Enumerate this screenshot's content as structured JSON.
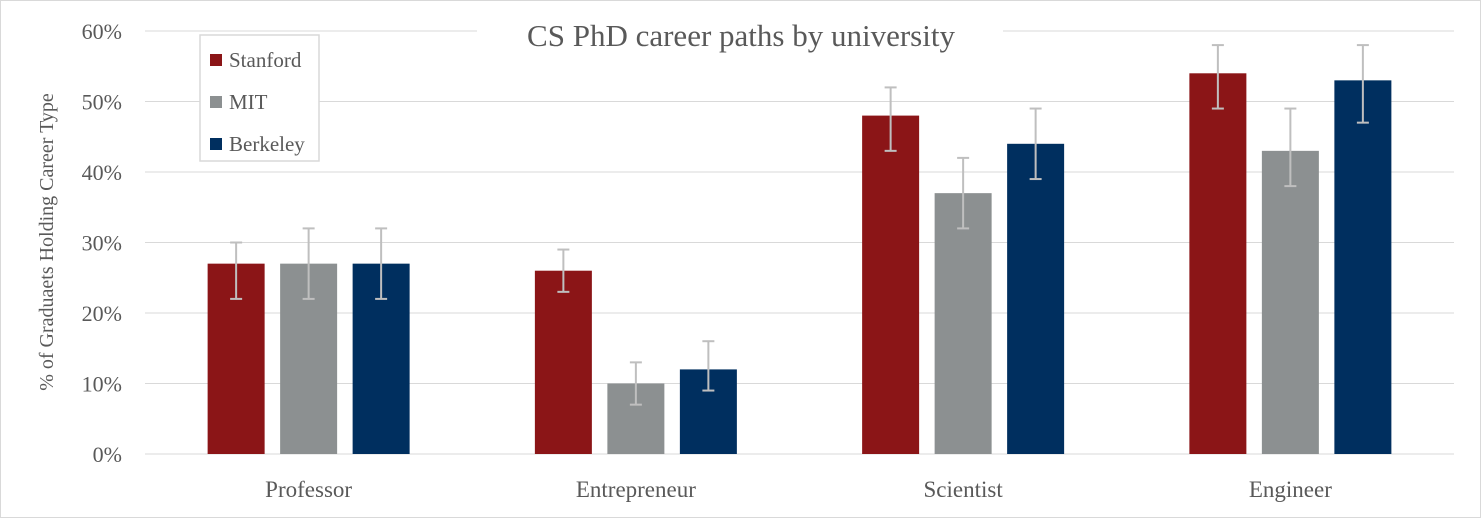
{
  "chart_data": {
    "type": "bar",
    "title": "CS PhD career paths by university",
    "ylabel": "% of Graduaets Holding Career Type",
    "xlabel": "",
    "categories": [
      "Professor",
      "Entrepreneur",
      "Scientist",
      "Engineer"
    ],
    "ylim": [
      0,
      60
    ],
    "yticks": [
      0,
      10,
      20,
      30,
      40,
      50,
      60
    ],
    "ytick_labels": [
      "0%",
      "10%",
      "20%",
      "30%",
      "40%",
      "50%",
      "60%"
    ],
    "grid": true,
    "legend_position": "top-left",
    "series": [
      {
        "name": "Stanford",
        "color": "#8b1517",
        "values": [
          27,
          26,
          48,
          54
        ],
        "error_low": [
          22,
          23,
          43,
          49
        ],
        "error_high": [
          30,
          29,
          52,
          58
        ]
      },
      {
        "name": "MIT",
        "color": "#8c9091",
        "values": [
          27,
          10,
          37,
          43
        ],
        "error_low": [
          22,
          7,
          32,
          38
        ],
        "error_high": [
          32,
          13,
          42,
          49
        ]
      },
      {
        "name": "Berkeley",
        "color": "#002f5f",
        "values": [
          27,
          12,
          44,
          53
        ],
        "error_low": [
          22,
          9,
          39,
          47
        ],
        "error_high": [
          32,
          16,
          49,
          58
        ]
      }
    ],
    "error_bar_color": "#bfbfbf",
    "gridline_color": "#d9d9d9"
  }
}
